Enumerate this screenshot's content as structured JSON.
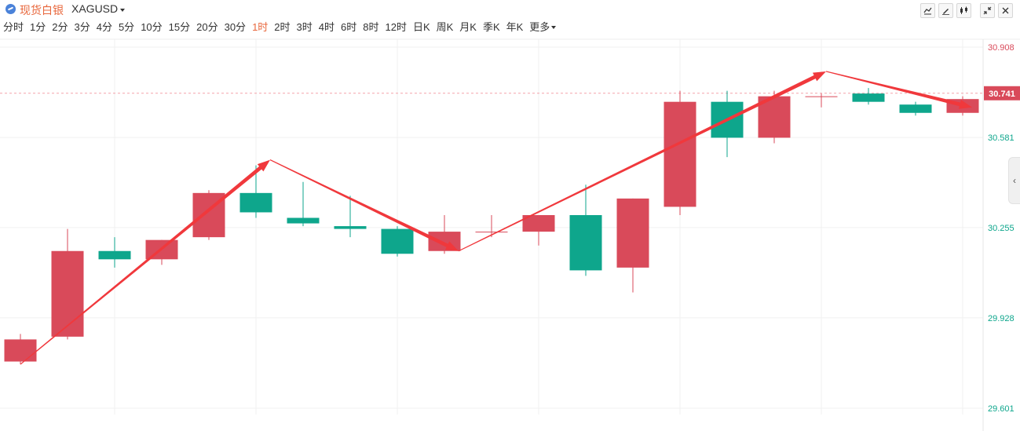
{
  "header": {
    "symbol_name": "现货白银",
    "symbol_code": "XAGUSD"
  },
  "periods": [
    "分时",
    "1分",
    "2分",
    "3分",
    "4分",
    "5分",
    "10分",
    "15分",
    "20分",
    "30分",
    "1时",
    "2时",
    "3时",
    "4时",
    "6时",
    "8时",
    "12时",
    "日K",
    "周K",
    "月K",
    "季K",
    "年K",
    "更多"
  ],
  "active_period": "1时",
  "toolbar": {
    "icons": [
      "line-chart-icon",
      "draw-pen-icon",
      "indicator-icon",
      "fullscreen-icon",
      "close-icon"
    ]
  },
  "colors": {
    "up": "#d94a5a",
    "down": "#0ea68c",
    "arrow": "#f0383c",
    "price_label_bg": "#d94a5a"
  },
  "chart_data": {
    "type": "candlestick",
    "y_ticks": [
      30.908,
      30.581,
      30.255,
      29.928,
      29.601
    ],
    "ylim": [
      29.601,
      30.908
    ],
    "current_price": 30.741,
    "candles": [
      {
        "open": 29.77,
        "close": 29.85,
        "high": 29.87,
        "low": 29.76
      },
      {
        "open": 29.86,
        "close": 30.17,
        "high": 30.25,
        "low": 29.85
      },
      {
        "open": 30.17,
        "close": 30.14,
        "high": 30.22,
        "low": 30.11
      },
      {
        "open": 30.14,
        "close": 30.21,
        "high": 30.21,
        "low": 30.12
      },
      {
        "open": 30.22,
        "close": 30.38,
        "high": 30.39,
        "low": 30.21
      },
      {
        "open": 30.38,
        "close": 30.31,
        "high": 30.48,
        "low": 30.29
      },
      {
        "open": 30.29,
        "close": 30.27,
        "high": 30.42,
        "low": 30.26
      },
      {
        "open": 30.26,
        "close": 30.25,
        "high": 30.37,
        "low": 30.22
      },
      {
        "open": 30.25,
        "close": 30.16,
        "high": 30.26,
        "low": 30.15
      },
      {
        "open": 30.17,
        "close": 30.24,
        "high": 30.3,
        "low": 30.16
      },
      {
        "open": 30.24,
        "close": 30.24,
        "high": 30.3,
        "low": 30.22
      },
      {
        "open": 30.24,
        "close": 30.3,
        "high": 30.3,
        "low": 30.19
      },
      {
        "open": 30.3,
        "close": 30.1,
        "high": 30.41,
        "low": 30.08
      },
      {
        "open": 30.11,
        "close": 30.36,
        "high": 30.36,
        "low": 30.02
      },
      {
        "open": 30.33,
        "close": 30.71,
        "high": 30.75,
        "low": 30.3
      },
      {
        "open": 30.71,
        "close": 30.58,
        "high": 30.75,
        "low": 30.51
      },
      {
        "open": 30.58,
        "close": 30.73,
        "high": 30.75,
        "low": 30.56
      },
      {
        "open": 30.73,
        "close": 30.73,
        "high": 30.74,
        "low": 30.69
      },
      {
        "open": 30.74,
        "close": 30.71,
        "high": 30.76,
        "low": 30.7
      },
      {
        "open": 30.7,
        "close": 30.67,
        "high": 30.71,
        "low": 30.66
      },
      {
        "open": 30.67,
        "close": 30.72,
        "high": 30.73,
        "low": 30.66
      }
    ],
    "trend_lines": [
      {
        "from": [
          0,
          29.76
        ],
        "to": [
          5.3,
          30.5
        ],
        "arrow": true
      },
      {
        "from": [
          5.3,
          30.5
        ],
        "to": [
          9.3,
          30.17
        ],
        "arrow": true
      },
      {
        "from": [
          9.3,
          30.17
        ],
        "to": [
          17.1,
          30.82
        ],
        "arrow": true
      },
      {
        "from": [
          17.1,
          30.82
        ],
        "to": [
          20.2,
          30.69
        ],
        "arrow": true
      }
    ]
  }
}
